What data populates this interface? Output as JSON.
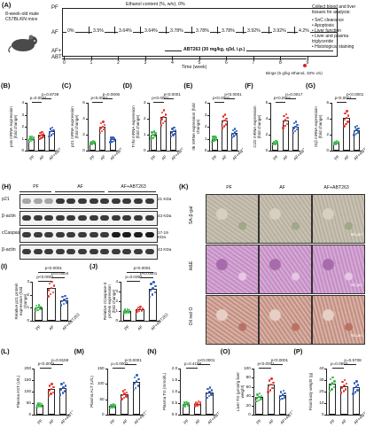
{
  "design": {
    "mouse_label": "8-week-old male C57BL/6N mice",
    "groups": [
      "PF",
      "AF",
      "AF+\nABT"
    ],
    "ethanol_label": "Ethanol content (%, w/v), 0%",
    "ethanol_steps": [
      "0%",
      "3.5%",
      "3.64%",
      "3.64%",
      "3.78%",
      "3.78%",
      "3.78%",
      "3.92%",
      "3.92%",
      "4.2%"
    ],
    "abt_label": "ABT263 (30 mg/kg, q3d, i.p.)",
    "time_ticks": [
      "0",
      "1",
      "2",
      "3",
      "4",
      "5",
      "6",
      "7",
      "8",
      "9"
    ],
    "time_label": "Time (week)",
    "binge_label": "Binge (5 g/kg ethanol, 33% v/v)",
    "collect_title": "Collect blood and liver tissues for analysis:",
    "collect_items": [
      "SnC clearance",
      "Apoptosis",
      "Liver function",
      "Liver and plasma triglyceride",
      "Histological staining"
    ]
  },
  "colors": {
    "PF": "#3cb84a",
    "AF": "#e8332b",
    "ABT": "#2d5fbf"
  },
  "panels": {
    "B": {
      "letter": "(B)",
      "ylabel": "p16 mRNA expression (fold change)",
      "yticks": [
        "0",
        "1",
        "2",
        "3",
        "4"
      ],
      "values": [
        1.0,
        1.3,
        1.6
      ],
      "p1": "p=0.0031",
      "p2": "p=0.8739"
    },
    "C": {
      "letter": "(C)",
      "ylabel": "p21 mRNA expression (fold change)",
      "yticks": [
        "0",
        "2",
        "4",
        "6"
      ],
      "values": [
        1.0,
        3.0,
        1.4
      ],
      "p1": "p<0.0001",
      "p2": "p=0.0006"
    },
    "D": {
      "letter": "(D)",
      "ylabel": "Tnfα mRNA expression (fold change)",
      "yticks": [
        "0",
        "1",
        "2",
        "3"
      ],
      "values": [
        1.0,
        2.1,
        1.2
      ],
      "p1": "p<0.0001",
      "p2": "p<0.0001"
    },
    "E": {
      "letter": "(E)",
      "ylabel": "Il6 mRNA expression (fold change)",
      "yticks": [
        "0",
        "1",
        "2",
        "3",
        "4"
      ],
      "values": [
        1.0,
        2.5,
        1.5
      ],
      "p1": "p<0.0001",
      "p2": "p<0.0001"
    },
    "F": {
      "letter": "(F)",
      "ylabel": "Ccl2 mRNA expression (fold change)",
      "yticks": [
        "0",
        "2",
        "4",
        "6"
      ],
      "values": [
        1.0,
        3.8,
        3.0
      ],
      "p1": "p<0.0001",
      "p2": "p=0.0017"
    },
    "G": {
      "letter": "(G)",
      "ylabel": "Il1β mRNA expression (fold change)",
      "yticks": [
        "0",
        "2",
        "4",
        "6"
      ],
      "values": [
        1.0,
        4.1,
        2.6
      ],
      "p1": "p<0.0001",
      "p2": "p<0.0001"
    }
  },
  "xcats": [
    "PF",
    "AF",
    "AF+ABT263"
  ],
  "western": {
    "letter": "(H)",
    "groups": [
      "PF",
      "AF",
      "AF+ABT263"
    ],
    "rows": [
      {
        "name": "p21",
        "kda": "21 KDa"
      },
      {
        "name": "β-actin",
        "kda": "43 KDa"
      },
      {
        "name": "cCaspase-3",
        "kda": "17-19 KDa"
      },
      {
        "name": "β-actin",
        "kda": "43 KDa"
      }
    ]
  },
  "quant": {
    "I": {
      "letter": "(I)",
      "ylabel": "Relative p21 protein expression (fold change)",
      "yticks": [
        "0",
        "1",
        "2",
        "3"
      ],
      "values": [
        1.0,
        2.5,
        1.6
      ],
      "p1": "p<0.0001",
      "p2": "p=0.0004",
      "p3": "p<0.0001"
    },
    "J": {
      "letter": "(J)",
      "ylabel": "Relative cCaspase-3 protein expression (fold change)",
      "yticks": [
        "0",
        "1",
        "2",
        "3",
        "4"
      ],
      "values": [
        1.0,
        1.2,
        3.3
      ],
      "p1": "p=0.0397",
      "p2": "p<0.0001",
      "p3": "p<0.0001"
    }
  },
  "histology": {
    "letter": "(K)",
    "columns": [
      "PF",
      "AF",
      "AF+ABT263"
    ],
    "rows": [
      "SA-β-gal",
      "H&E",
      "Oil red O"
    ],
    "scale": "50 μm"
  },
  "bottom": {
    "L": {
      "letter": "(L)",
      "ylabel": "Plasma AST (U/L)",
      "yticks": [
        "0",
        "50",
        "100",
        "150",
        "200"
      ],
      "values": [
        42,
        110,
        116
      ],
      "p1": "p<0.0001",
      "p2": "p=0.9159"
    },
    "M": {
      "letter": "(M)",
      "ylabel": "Plasma ALT (U/L)",
      "yticks": [
        "0",
        "50",
        "100",
        "150"
      ],
      "values": [
        28,
        67,
        107
      ],
      "p1": "p=0.0002",
      "p2": "p<0.0001"
    },
    "N": {
      "letter": "(N)",
      "ylabel": "Plasma TG (mmol/L)",
      "yticks": [
        "0.0",
        "0.5",
        "1.0",
        "1.5",
        "2.0"
      ],
      "values": [
        0.45,
        0.48,
        0.98
      ],
      "p1": "p=0.4198",
      "p2": "p<0.0001"
    },
    "O": {
      "letter": "(O)",
      "ylabel": "Liver TG (μmol/g liver weight)",
      "yticks": [
        "0",
        "20",
        "40",
        "60",
        "80",
        "100"
      ],
      "values": [
        38,
        65,
        43
      ],
      "p1": "p<0.0001",
      "p2": "p<0.0001"
    },
    "P": {
      "letter": "(P)",
      "ylabel": "Final body weight (g)",
      "yticks": [
        "0",
        "10",
        "20",
        "30",
        "40"
      ],
      "values": [
        27,
        25,
        24
      ],
      "p1": "p=0.0593",
      "p2": "p=0.5708"
    }
  }
}
